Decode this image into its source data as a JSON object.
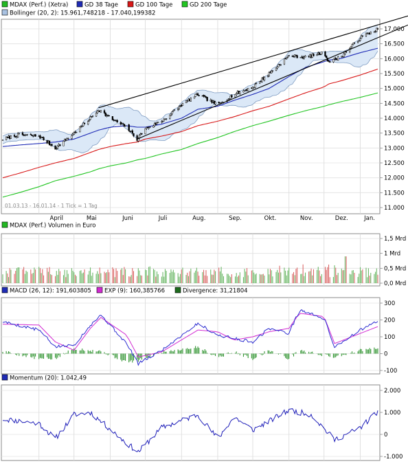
{
  "colors": {
    "price": "#000000",
    "gd38": "#1f2bb5",
    "gd100": "#d81818",
    "gd200": "#22c522",
    "bollinger_fill": "#dbe8f7",
    "bollinger_line": "#6f8fb6",
    "trend": "#000000",
    "volume_up": "#5fb25a",
    "volume_down": "#d85a5a",
    "macd": "#2a2ad0",
    "exp": "#d22ad2",
    "divergence": "#1d8a1d",
    "momentum": "#1c1cb8",
    "grid": "#d6d6d6",
    "frame": "#8a8a8a"
  },
  "main": {
    "legend": [
      {
        "label": "MDAX (Perf.) (Xetra)",
        "icon": "price-swatch",
        "color": "#22b822"
      },
      {
        "label": "GD 38 Tage",
        "icon": "gd38-swatch",
        "color": "#1f2bb5"
      },
      {
        "label": "GD 100 Tage",
        "icon": "gd100-swatch",
        "color": "#d81818"
      },
      {
        "label": "GD 200 Tage",
        "icon": "gd200-swatch",
        "color": "#22c522"
      }
    ],
    "legend2": {
      "label": "Bollinger (20, 2): 15.961,748218 - 17.040,199382",
      "icon": "bollinger-swatch",
      "color": "#a9c2e2"
    },
    "footer": "01.03.13 - 16.01.14 - 1 Tick = 1 Tag",
    "months": [
      "April",
      "Mai",
      "Juni",
      "Juli",
      "Aug.",
      "Sep.",
      "Okt.",
      "Nov.",
      "Dez.",
      "Jan."
    ],
    "yticks": [
      "17.000",
      "16.500",
      "16.000",
      "15.500",
      "15.000",
      "14.500",
      "14.000",
      "13.500",
      "13.000",
      "12.500",
      "12.000",
      "11.500",
      "11.000"
    ]
  },
  "volume": {
    "legend": {
      "label": "MDAX (Perf.) Volumen in Euro",
      "icon": "volume-swatch",
      "color": "#22b822"
    },
    "yticks": [
      "1,5 Mrd",
      "1 Mrd",
      "0,5 Mrd",
      "0,0 Mrd"
    ]
  },
  "macd": {
    "legend": [
      {
        "label": "MACD (26, 12): 191,603805",
        "icon": "macd-swatch",
        "color": "#1f2bb5"
      },
      {
        "label": "EXP (9): 160,385766",
        "icon": "exp-swatch",
        "color": "#d22ad2"
      },
      {
        "label": "Divergence: 31,21804",
        "icon": "divergence-swatch",
        "color": "#1d6a1d"
      }
    ],
    "yticks": [
      "300",
      "200",
      "100",
      "0",
      "-100"
    ]
  },
  "momentum": {
    "legend": {
      "label": "Momentum (20): 1.042,49",
      "icon": "momentum-swatch",
      "color": "#1f2bb5"
    },
    "yticks": [
      "2.000",
      "1.000",
      "0",
      "-1.000"
    ]
  },
  "chart_data": [
    {
      "type": "line",
      "panel": "price",
      "title": "MDAX (Perf.) (Xetra)",
      "period": "01.03.13 - 16.01.14",
      "x": [
        "2013-03-01",
        "2013-03-15",
        "2013-04-01",
        "2013-04-15",
        "2013-05-01",
        "2013-05-15",
        "2013-05-22",
        "2013-06-01",
        "2013-06-15",
        "2013-06-24",
        "2013-07-01",
        "2013-07-15",
        "2013-08-01",
        "2013-08-15",
        "2013-09-01",
        "2013-09-15",
        "2013-10-01",
        "2013-10-15",
        "2013-11-01",
        "2013-11-15",
        "2013-12-01",
        "2013-12-05",
        "2013-12-15",
        "2014-01-01",
        "2014-01-16"
      ],
      "ylim": [
        11000,
        17300
      ],
      "series": [
        {
          "name": "MDAX (Perf.) (Xetra)",
          "values": [
            13300,
            13450,
            13400,
            13000,
            13500,
            14000,
            14300,
            14000,
            13700,
            13300,
            13650,
            13900,
            14450,
            14800,
            14450,
            14800,
            15050,
            15500,
            16100,
            16050,
            16200,
            15900,
            16050,
            16700,
            17000
          ]
        },
        {
          "name": "GD 38 Tage",
          "values": [
            13050,
            13100,
            13150,
            13200,
            13300,
            13500,
            13600,
            13700,
            13750,
            13700,
            13700,
            13800,
            14000,
            14300,
            14400,
            14600,
            14800,
            15000,
            15400,
            15700,
            15900,
            15950,
            16000,
            16200,
            16350
          ]
        },
        {
          "name": "GD 100 Tage",
          "values": [
            12000,
            12150,
            12350,
            12500,
            12650,
            12850,
            12950,
            13050,
            13150,
            13200,
            13300,
            13400,
            13550,
            13750,
            13900,
            14050,
            14250,
            14400,
            14650,
            14850,
            15050,
            15150,
            15250,
            15450,
            15650
          ]
        },
        {
          "name": "GD 200 Tage",
          "values": [
            11350,
            11500,
            11700,
            11900,
            12050,
            12200,
            12300,
            12400,
            12500,
            12600,
            12650,
            12800,
            12950,
            13150,
            13350,
            13550,
            13750,
            13900,
            14100,
            14250,
            14400,
            14450,
            14550,
            14700,
            14850
          ]
        }
      ],
      "bollinger": {
        "upper_last": 17040.199382,
        "lower_last": 15961.748218
      },
      "trendlines": [
        {
          "from": [
            "2013-05-22",
            14350
          ],
          "to": [
            "2014-01-16",
            17250
          ]
        },
        {
          "from": [
            "2013-06-24",
            13300
          ],
          "to": [
            "2014-01-16",
            16900
          ]
        }
      ]
    },
    {
      "type": "bar",
      "panel": "volume",
      "title": "MDAX (Perf.) Volumen in Euro",
      "ylabel": "Mrd",
      "ylim": [
        0,
        1.5
      ],
      "typical_range": [
        0.2,
        0.55
      ],
      "peaks": [
        {
          "x": "2013-12-20",
          "value": 0.9
        }
      ]
    },
    {
      "type": "line",
      "panel": "macd",
      "ylim": [
        -100,
        300
      ],
      "x": [
        "2013-03-01",
        "2013-04-01",
        "2013-04-15",
        "2013-05-01",
        "2013-05-15",
        "2013-05-24",
        "2013-06-15",
        "2013-06-25",
        "2013-07-15",
        "2013-08-15",
        "2013-09-01",
        "2013-09-15",
        "2013-10-01",
        "2013-10-15",
        "2013-11-01",
        "2013-11-10",
        "2013-12-01",
        "2013-12-10",
        "2014-01-01",
        "2014-01-16"
      ],
      "series": [
        {
          "name": "MACD (26, 12)",
          "values": [
            190,
            140,
            40,
            50,
            170,
            230,
            60,
            -60,
            20,
            180,
            110,
            90,
            70,
            150,
            120,
            260,
            210,
            40,
            140,
            191.6
          ]
        },
        {
          "name": "EXP (9)",
          "values": [
            175,
            170,
            70,
            20,
            150,
            215,
            110,
            -20,
            10,
            140,
            130,
            80,
            100,
            130,
            150,
            240,
            220,
            60,
            120,
            160.4
          ]
        },
        {
          "name": "Divergence",
          "values": [
            15,
            -30,
            -30,
            30,
            20,
            15,
            -50,
            -40,
            10,
            40,
            -20,
            10,
            -30,
            20,
            -30,
            20,
            -10,
            -20,
            20,
            31.2
          ]
        }
      ]
    },
    {
      "type": "line",
      "panel": "momentum",
      "ylim": [
        -1000,
        2000
      ],
      "x": [
        "2013-03-01",
        "2013-04-01",
        "2013-04-15",
        "2013-05-01",
        "2013-05-15",
        "2013-06-15",
        "2013-06-25",
        "2013-07-15",
        "2013-08-15",
        "2013-09-01",
        "2013-09-15",
        "2013-10-01",
        "2013-10-15",
        "2013-11-01",
        "2013-11-20",
        "2013-12-10",
        "2014-01-01",
        "2014-01-16"
      ],
      "series": [
        {
          "name": "Momentum (20)",
          "values": [
            700,
            500,
            -200,
            900,
            1000,
            -400,
            -800,
            300,
            900,
            -200,
            800,
            200,
            600,
            1100,
            900,
            -250,
            300,
            1042.49
          ]
        }
      ]
    }
  ]
}
